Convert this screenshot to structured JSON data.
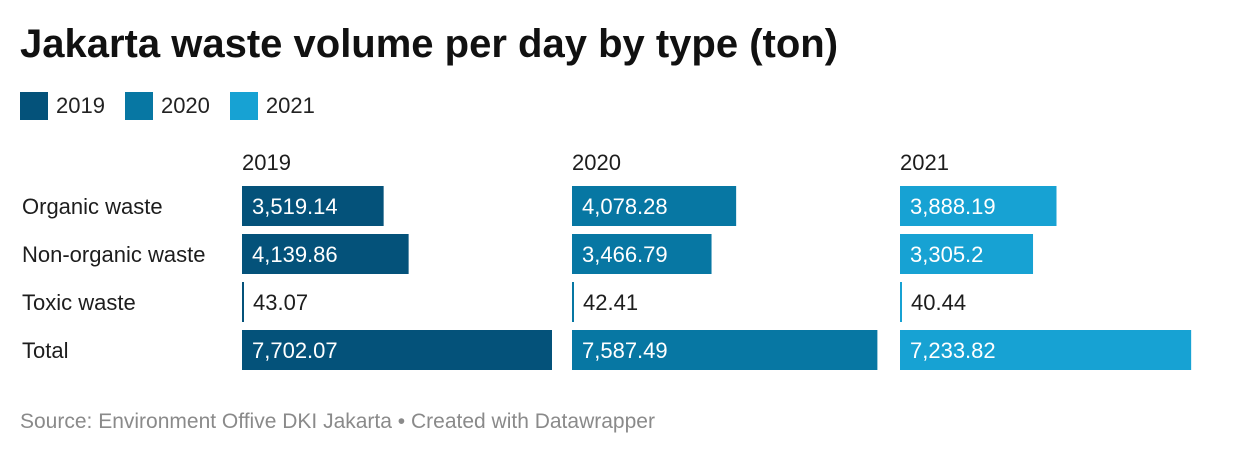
{
  "title": "Jakarta waste volume per day by type (ton)",
  "footer": {
    "source": "Source: Environment Offive DKI Jakarta",
    "separator": " • ",
    "credit": "Created with Datawrapper"
  },
  "chart_data": {
    "type": "bar",
    "orientation": "horizontal-split",
    "title": "Jakarta waste volume per day by type (ton)",
    "categories": [
      "Organic waste",
      "Non-organic waste",
      "Toxic waste",
      "Total"
    ],
    "series": [
      {
        "name": "2019",
        "color": "#04527a",
        "values": [
          3519.14,
          4139.86,
          43.07,
          7702.07
        ],
        "labels": [
          "3,519.14",
          "4,139.86",
          "43.07",
          "7,702.07"
        ]
      },
      {
        "name": "2020",
        "color": "#0777a3",
        "values": [
          4078.28,
          3466.79,
          42.41,
          7587.49
        ],
        "labels": [
          "4,078.28",
          "3,466.79",
          "42.41",
          "7,587.49"
        ]
      },
      {
        "name": "2021",
        "color": "#17a2d3",
        "values": [
          3888.19,
          3305.2,
          40.44,
          7233.82
        ],
        "labels": [
          "3,888.19",
          "3,305.2",
          "40.44",
          "7,233.82"
        ]
      }
    ],
    "legend": "top-left",
    "grid": false
  }
}
